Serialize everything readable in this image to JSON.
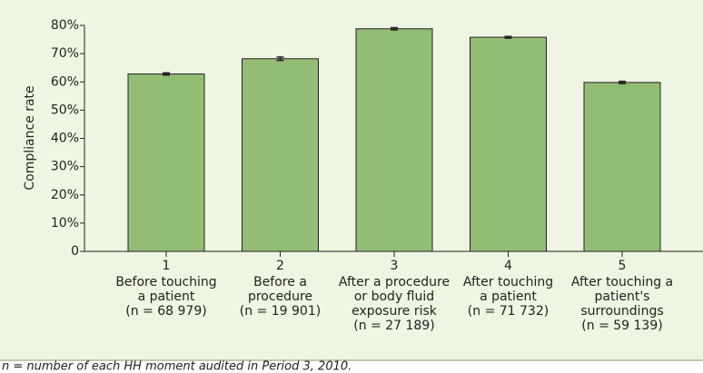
{
  "chart_data": {
    "type": "bar",
    "y_label": "Compliance rate",
    "categories": [
      "1",
      "2",
      "3",
      "4",
      "5"
    ],
    "category_descriptions": [
      [
        "Before touching",
        "a patient",
        "(n = 68 979)"
      ],
      [
        "Before a",
        "procedure",
        "(n = 19 901)"
      ],
      [
        "After a procedure",
        "or body fluid",
        "exposure risk",
        "(n = 27 189)"
      ],
      [
        "After touching",
        "a patient",
        "(n = 71 732)"
      ],
      [
        "After touching a",
        "patient's",
        "surroundings",
        "(n = 59 139)"
      ]
    ],
    "values": [
      62.8,
      68.2,
      78.8,
      75.8,
      59.8
    ],
    "errors": [
      0.4,
      0.6,
      0.4,
      0.3,
      0.4
    ],
    "color": "#93bd74",
    "ylim": [
      0,
      80
    ],
    "yticks": [
      0,
      {
        "value": 10,
        "label": "10%"
      },
      {
        "value": 20,
        "label": "20%"
      },
      {
        "value": 30,
        "label": "30%"
      },
      {
        "value": 40,
        "label": "40%"
      },
      {
        "value": 50,
        "label": "50%"
      },
      {
        "value": 60,
        "label": "60%"
      },
      {
        "value": 70,
        "label": "70%"
      },
      {
        "value": 80,
        "label": "80%"
      }
    ],
    "grid": false,
    "footnote": "n = number of each HH moment audited in Period 3, 2010."
  }
}
